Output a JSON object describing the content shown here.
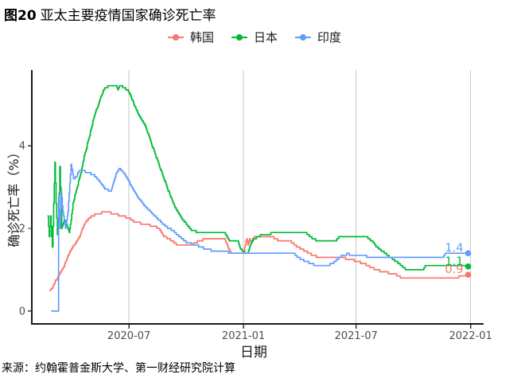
{
  "figure": {
    "title_prefix": "图20",
    "title_rest": "亚太主要疫情国家确诊死亡率",
    "source": "来源：约翰霍普金斯大学、第一财经研究院计算"
  },
  "chart_data": {
    "type": "line",
    "title": "图20 亚太主要疫情国家确诊死亡率",
    "xlabel": "日期",
    "ylabel": "确诊死亡率（%）",
    "grid": "vertical-only",
    "legend_position": "top-center",
    "x_domain": [
      "2020-01-27",
      "2022-01-09"
    ],
    "ylim": [
      -0.31,
      5.83
    ],
    "x_ticks": [
      {
        "label": "2020-07",
        "date": "2020-07-01"
      },
      {
        "label": "2021-01",
        "date": "2021-01-01"
      },
      {
        "label": "2021-07",
        "date": "2021-07-01"
      },
      {
        "label": "2022-01",
        "date": "2022-01-01"
      }
    ],
    "y_ticks": [
      {
        "label": "0",
        "value": 0
      },
      {
        "label": "2",
        "value": 2
      },
      {
        "label": "4",
        "value": 4
      }
    ],
    "series": [
      {
        "name": "韩国",
        "color": "#F8766D",
        "end_label": "0.9",
        "points": [
          [
            "2020-02-25",
            0.5
          ],
          [
            "2020-02-29",
            0.55
          ],
          [
            "2020-03-04",
            0.7
          ],
          [
            "2020-03-10",
            0.85
          ],
          [
            "2020-03-14",
            0.95
          ],
          [
            "2020-03-19",
            1.1
          ],
          [
            "2020-03-23",
            1.25
          ],
          [
            "2020-03-27",
            1.4
          ],
          [
            "2020-04-01",
            1.55
          ],
          [
            "2020-04-07",
            1.65
          ],
          [
            "2020-04-14",
            1.85
          ],
          [
            "2020-04-20",
            2.1
          ],
          [
            "2020-04-28",
            2.25
          ],
          [
            "2020-05-09",
            2.35
          ],
          [
            "2020-05-26",
            2.4
          ],
          [
            "2020-06-15",
            2.32
          ],
          [
            "2020-07-01",
            2.25
          ],
          [
            "2020-07-11",
            2.15
          ],
          [
            "2020-07-27",
            2.1
          ],
          [
            "2020-08-11",
            2.05
          ],
          [
            "2020-08-18",
            2.0
          ],
          [
            "2020-08-27",
            1.8
          ],
          [
            "2020-09-09",
            1.7
          ],
          [
            "2020-09-16",
            1.6
          ],
          [
            "2020-10-08",
            1.58
          ],
          [
            "2020-10-21",
            1.7
          ],
          [
            "2020-11-03",
            1.75
          ],
          [
            "2020-12-02",
            1.75
          ],
          [
            "2020-12-08",
            1.5
          ],
          [
            "2020-12-14",
            1.38
          ],
          [
            "2021-01-01",
            1.38
          ],
          [
            "2021-01-04",
            1.6
          ],
          [
            "2021-01-06",
            1.75
          ],
          [
            "2021-01-08",
            1.6
          ],
          [
            "2021-01-11",
            1.75
          ],
          [
            "2021-01-14",
            1.65
          ],
          [
            "2021-01-18",
            1.8
          ],
          [
            "2021-02-16",
            1.8
          ],
          [
            "2021-02-25",
            1.72
          ],
          [
            "2021-03-16",
            1.7
          ],
          [
            "2021-03-29",
            1.55
          ],
          [
            "2021-04-10",
            1.45
          ],
          [
            "2021-04-22",
            1.35
          ],
          [
            "2021-04-30",
            1.31
          ],
          [
            "2021-06-07",
            1.3
          ],
          [
            "2021-07-01",
            1.21
          ],
          [
            "2021-07-17",
            1.12
          ],
          [
            "2021-07-30",
            1.02
          ],
          [
            "2021-08-12",
            0.95
          ],
          [
            "2021-08-31",
            0.9
          ],
          [
            "2021-09-13",
            0.8
          ],
          [
            "2021-12-10",
            0.8
          ],
          [
            "2021-12-16",
            0.85
          ],
          [
            "2021-12-28",
            0.88
          ]
        ]
      },
      {
        "name": "日本",
        "color": "#00BA38",
        "end_label": "1.1",
        "points": [
          [
            "2020-02-22",
            2.3
          ],
          [
            "2020-02-24",
            1.8
          ],
          [
            "2020-02-26",
            2.3
          ],
          [
            "2020-02-29",
            1.55
          ],
          [
            "2020-03-04",
            3.6
          ],
          [
            "2020-03-06",
            2.6
          ],
          [
            "2020-03-08",
            1.85
          ],
          [
            "2020-03-10",
            2.2
          ],
          [
            "2020-03-12",
            3.5
          ],
          [
            "2020-03-15",
            2.0
          ],
          [
            "2020-03-19",
            2.2
          ],
          [
            "2020-03-23",
            2.1
          ],
          [
            "2020-03-27",
            1.9
          ],
          [
            "2020-03-30",
            2.2
          ],
          [
            "2020-04-02",
            2.6
          ],
          [
            "2020-04-07",
            2.9
          ],
          [
            "2020-04-14",
            3.3
          ],
          [
            "2020-04-21",
            3.8
          ],
          [
            "2020-04-28",
            4.2
          ],
          [
            "2020-05-06",
            4.7
          ],
          [
            "2020-05-15",
            5.1
          ],
          [
            "2020-05-23",
            5.4
          ],
          [
            "2020-06-01",
            5.45
          ],
          [
            "2020-06-11",
            5.45
          ],
          [
            "2020-06-13",
            5.35
          ],
          [
            "2020-06-16",
            5.45
          ],
          [
            "2020-06-24",
            5.4
          ],
          [
            "2020-07-01",
            5.3
          ],
          [
            "2020-07-09",
            5.0
          ],
          [
            "2020-07-18",
            4.7
          ],
          [
            "2020-07-27",
            4.5
          ],
          [
            "2020-08-05",
            4.1
          ],
          [
            "2020-08-18",
            3.55
          ],
          [
            "2020-08-31",
            3.0
          ],
          [
            "2020-09-13",
            2.5
          ],
          [
            "2020-09-26",
            2.2
          ],
          [
            "2020-10-08",
            1.98
          ],
          [
            "2020-10-21",
            1.9
          ],
          [
            "2020-11-15",
            1.88
          ],
          [
            "2020-12-02",
            1.88
          ],
          [
            "2020-12-09",
            1.7
          ],
          [
            "2020-12-23",
            1.7
          ],
          [
            "2020-12-27",
            1.5
          ],
          [
            "2021-01-03",
            1.42
          ],
          [
            "2021-01-08",
            1.4
          ],
          [
            "2021-01-12",
            1.6
          ],
          [
            "2021-01-18",
            1.75
          ],
          [
            "2021-01-31",
            1.85
          ],
          [
            "2021-02-28",
            1.9
          ],
          [
            "2021-04-11",
            1.9
          ],
          [
            "2021-04-20",
            1.78
          ],
          [
            "2021-04-30",
            1.7
          ],
          [
            "2021-05-29",
            1.7
          ],
          [
            "2021-06-04",
            1.8
          ],
          [
            "2021-07-17",
            1.8
          ],
          [
            "2021-07-26",
            1.7
          ],
          [
            "2021-08-03",
            1.55
          ],
          [
            "2021-08-12",
            1.45
          ],
          [
            "2021-08-25",
            1.3
          ],
          [
            "2021-09-03",
            1.2
          ],
          [
            "2021-09-10",
            1.12
          ],
          [
            "2021-09-20",
            1.0
          ],
          [
            "2021-10-16",
            1.0
          ],
          [
            "2021-10-20",
            1.08
          ],
          [
            "2021-12-28",
            1.08
          ]
        ]
      },
      {
        "name": "印度",
        "color": "#619CFF",
        "end_label": "1.4",
        "points": [
          [
            "2020-02-28",
            0.0
          ],
          [
            "2020-03-09",
            0.0
          ],
          [
            "2020-03-10",
            2.75
          ],
          [
            "2020-03-12",
            2.0
          ],
          [
            "2020-03-14",
            2.9
          ],
          [
            "2020-03-17",
            2.4
          ],
          [
            "2020-03-21",
            2.0
          ],
          [
            "2020-03-25",
            2.4
          ],
          [
            "2020-03-30",
            3.55
          ],
          [
            "2020-04-03",
            3.2
          ],
          [
            "2020-04-08",
            3.25
          ],
          [
            "2020-04-12",
            3.4
          ],
          [
            "2020-04-18",
            3.4
          ],
          [
            "2020-04-25",
            3.35
          ],
          [
            "2020-05-05",
            3.3
          ],
          [
            "2020-05-14",
            3.15
          ],
          [
            "2020-05-24",
            2.95
          ],
          [
            "2020-06-02",
            2.9
          ],
          [
            "2020-06-10",
            3.3
          ],
          [
            "2020-06-16",
            3.45
          ],
          [
            "2020-06-25",
            3.3
          ],
          [
            "2020-07-07",
            2.96
          ],
          [
            "2020-07-18",
            2.7
          ],
          [
            "2020-07-28",
            2.52
          ],
          [
            "2020-08-08",
            2.35
          ],
          [
            "2020-08-19",
            2.19
          ],
          [
            "2020-08-29",
            2.05
          ],
          [
            "2020-09-10",
            1.94
          ],
          [
            "2020-09-20",
            1.8
          ],
          [
            "2020-10-01",
            1.67
          ],
          [
            "2020-10-10",
            1.62
          ],
          [
            "2020-10-22",
            1.57
          ],
          [
            "2020-11-01",
            1.5
          ],
          [
            "2020-11-11",
            1.47
          ],
          [
            "2020-11-24",
            1.44
          ],
          [
            "2020-12-12",
            1.42
          ],
          [
            "2021-01-01",
            1.4
          ],
          [
            "2021-03-23",
            1.4
          ],
          [
            "2021-03-29",
            1.3
          ],
          [
            "2021-04-11",
            1.2
          ],
          [
            "2021-04-24",
            1.12
          ],
          [
            "2021-05-19",
            1.12
          ],
          [
            "2021-05-28",
            1.2
          ],
          [
            "2021-06-07",
            1.33
          ],
          [
            "2021-06-17",
            1.38
          ],
          [
            "2021-07-03",
            1.35
          ],
          [
            "2021-07-20",
            1.32
          ],
          [
            "2021-08-15",
            1.3
          ],
          [
            "2021-11-18",
            1.3
          ],
          [
            "2021-11-22",
            1.4
          ],
          [
            "2021-12-28",
            1.4
          ]
        ]
      }
    ]
  }
}
